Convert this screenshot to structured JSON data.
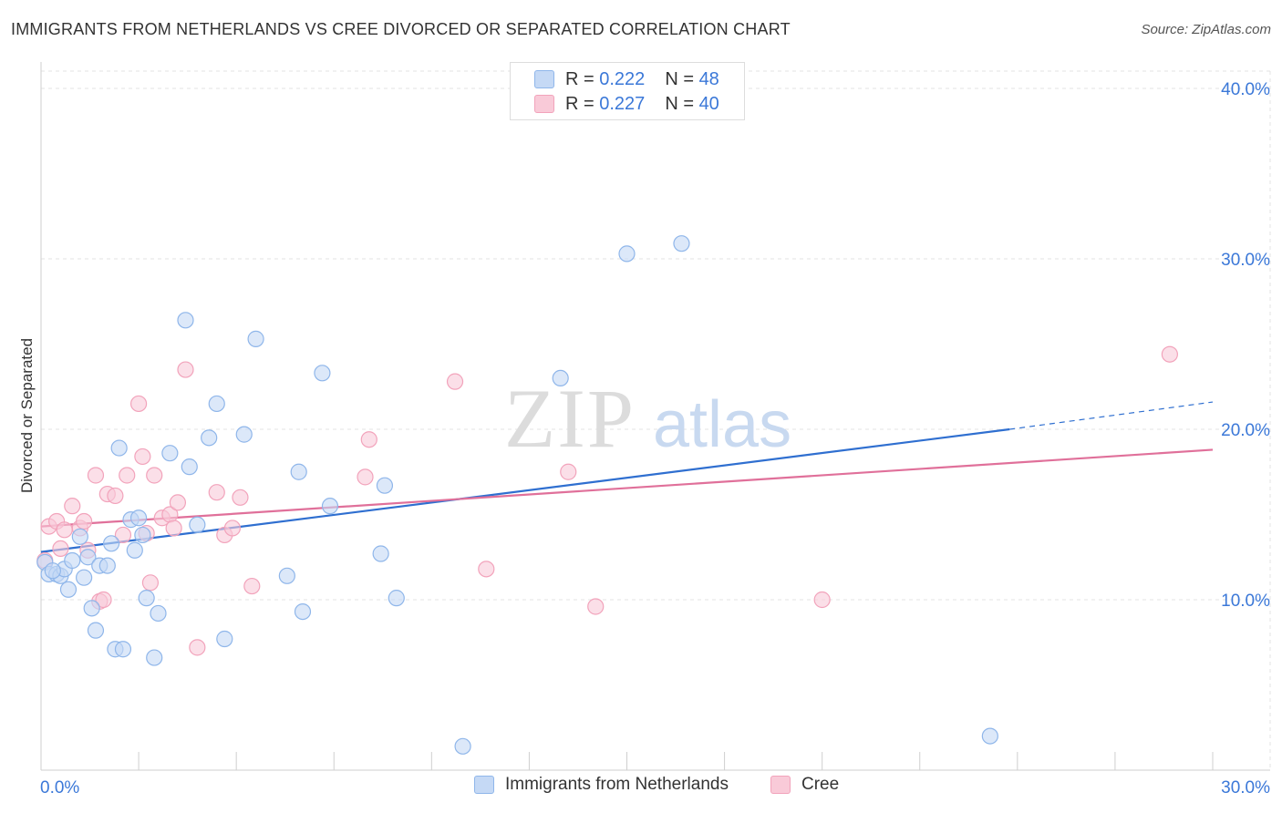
{
  "title": "IMMIGRANTS FROM NETHERLANDS VS CREE DIVORCED OR SEPARATED CORRELATION CHART",
  "source": "Source: ZipAtlas.com",
  "watermark": {
    "zip": "ZIP",
    "atlas": "atlas"
  },
  "legend_top": {
    "r_label": "R =",
    "n_label": "N =",
    "rows": [
      {
        "r": "0.222",
        "n": "48"
      },
      {
        "r": "0.227",
        "n": "40"
      }
    ]
  },
  "chart_data": {
    "type": "scatter",
    "title": "IMMIGRANTS FROM NETHERLANDS VS CREE DIVORCED OR SEPARATED CORRELATION CHART",
    "xlabel": "",
    "ylabel": "Divorced or Separated",
    "xlim": [
      0,
      30
    ],
    "ylim": [
      0,
      40
    ],
    "x_tick_labels": [
      "0.0%",
      "30.0%"
    ],
    "y_ticks": [
      10,
      20,
      30,
      40
    ],
    "y_tick_labels": [
      "10.0%",
      "20.0%",
      "30.0%",
      "40.0%"
    ],
    "grid": true,
    "legend_position": "bottom",
    "series": [
      {
        "name": "Immigrants from Netherlands",
        "color": "#8fb6ea",
        "fill": "#c5d9f5",
        "line_color": "#2f6fd0",
        "r": "0.222",
        "n": "48",
        "trend": {
          "x0": 0.0,
          "y0": 12.8,
          "x1": 24.8,
          "y1": 20.0,
          "dash_to_x": 30.0,
          "dash_to_y": 21.6
        },
        "points": [
          [
            0.1,
            12.2
          ],
          [
            0.2,
            11.5
          ],
          [
            0.4,
            11.5
          ],
          [
            0.5,
            11.4
          ],
          [
            0.6,
            11.8
          ],
          [
            0.7,
            10.6
          ],
          [
            0.8,
            12.3
          ],
          [
            1.0,
            13.7
          ],
          [
            1.1,
            11.3
          ],
          [
            1.2,
            12.5
          ],
          [
            1.3,
            9.5
          ],
          [
            1.4,
            8.2
          ],
          [
            1.5,
            12.0
          ],
          [
            1.7,
            12.0
          ],
          [
            1.8,
            13.3
          ],
          [
            1.9,
            7.1
          ],
          [
            2.0,
            18.9
          ],
          [
            2.1,
            7.1
          ],
          [
            2.3,
            14.7
          ],
          [
            2.4,
            12.9
          ],
          [
            2.5,
            14.8
          ],
          [
            2.6,
            13.8
          ],
          [
            2.7,
            10.1
          ],
          [
            2.9,
            6.6
          ],
          [
            3.0,
            9.2
          ],
          [
            3.3,
            18.6
          ],
          [
            3.7,
            26.4
          ],
          [
            3.8,
            17.8
          ],
          [
            4.0,
            14.4
          ],
          [
            4.3,
            19.5
          ],
          [
            4.5,
            21.5
          ],
          [
            4.7,
            7.7
          ],
          [
            5.2,
            19.7
          ],
          [
            5.5,
            25.3
          ],
          [
            6.3,
            11.4
          ],
          [
            6.6,
            17.5
          ],
          [
            6.7,
            9.3
          ],
          [
            7.2,
            23.3
          ],
          [
            7.4,
            15.5
          ],
          [
            8.7,
            12.7
          ],
          [
            8.8,
            16.7
          ],
          [
            9.1,
            10.1
          ],
          [
            10.8,
            1.4
          ],
          [
            13.3,
            23.0
          ],
          [
            15.0,
            30.3
          ],
          [
            16.4,
            30.9
          ],
          [
            24.3,
            2.0
          ],
          [
            0.3,
            11.7
          ]
        ]
      },
      {
        "name": "Cree",
        "color": "#f2a3bb",
        "fill": "#f9cad8",
        "line_color": "#e0709a",
        "r": "0.227",
        "n": "40",
        "trend": {
          "x0": 0.0,
          "y0": 14.3,
          "x1": 30.0,
          "y1": 18.8
        },
        "points": [
          [
            0.2,
            14.3
          ],
          [
            0.4,
            14.6
          ],
          [
            0.5,
            13.0
          ],
          [
            0.6,
            14.1
          ],
          [
            0.8,
            15.5
          ],
          [
            1.0,
            14.2
          ],
          [
            1.1,
            14.6
          ],
          [
            1.2,
            12.9
          ],
          [
            1.4,
            17.3
          ],
          [
            1.5,
            9.9
          ],
          [
            1.6,
            10.0
          ],
          [
            1.7,
            16.2
          ],
          [
            1.9,
            16.1
          ],
          [
            2.1,
            13.8
          ],
          [
            2.2,
            17.3
          ],
          [
            2.5,
            21.5
          ],
          [
            2.6,
            18.4
          ],
          [
            2.7,
            13.9
          ],
          [
            2.8,
            11.0
          ],
          [
            2.9,
            17.3
          ],
          [
            3.1,
            14.8
          ],
          [
            3.3,
            15.0
          ],
          [
            3.4,
            14.2
          ],
          [
            3.5,
            15.7
          ],
          [
            3.7,
            23.5
          ],
          [
            4.0,
            7.2
          ],
          [
            4.5,
            16.3
          ],
          [
            4.7,
            13.8
          ],
          [
            4.9,
            14.2
          ],
          [
            5.1,
            16.0
          ],
          [
            5.4,
            10.8
          ],
          [
            8.3,
            17.2
          ],
          [
            8.4,
            19.4
          ],
          [
            10.6,
            22.8
          ],
          [
            11.4,
            11.8
          ],
          [
            13.5,
            17.5
          ],
          [
            14.2,
            9.6
          ],
          [
            20.0,
            10.0
          ],
          [
            28.9,
            24.4
          ],
          [
            0.1,
            12.3
          ]
        ]
      }
    ]
  },
  "legend_bottom": {
    "items": [
      {
        "label": "Immigrants from Netherlands"
      },
      {
        "label": "Cree"
      }
    ]
  }
}
